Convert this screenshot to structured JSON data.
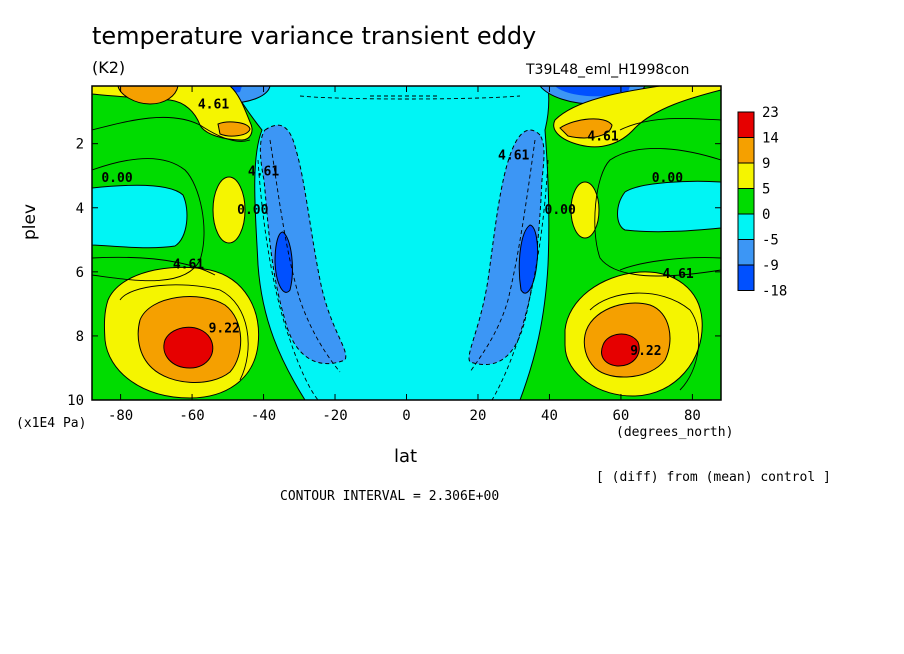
{
  "page": {
    "title": "temperature variance transient eddy",
    "units": "(K2)",
    "run_id": "T39L48_eml_H1998con",
    "diff_note": "[ (diff) from (mean) control ]",
    "contour_interval": "CONTOUR INTERVAL = 2.306E+00"
  },
  "chart_data": {
    "type": "heatmap",
    "subtype": "filled-contour",
    "title": "temperature variance transient eddy",
    "units": "(K2)",
    "xlabel": "lat",
    "xunits": "(degrees_north)",
    "ylabel": "plev",
    "yunits": "(x1E4 Pa)",
    "xlim": [
      -88,
      88
    ],
    "ylim": [
      10,
      0.2
    ],
    "y_inverted": true,
    "xticks": [
      -80,
      -60,
      -40,
      -20,
      0,
      20,
      40,
      60,
      80
    ],
    "xtick_labels": [
      "-80",
      "-60",
      "-40",
      "-20",
      "0",
      "20",
      "40",
      "60",
      "80"
    ],
    "yticks": [
      2,
      4,
      6,
      8,
      10
    ],
    "ytick_labels": [
      "2",
      "4",
      "6",
      "8",
      "10"
    ],
    "contour_interval": 2.306,
    "colorbar": {
      "levels": [
        "23",
        "14",
        "9",
        "5",
        "0",
        "-5",
        "-9",
        "-18"
      ],
      "colors": [
        "#e60000",
        "#f5a000",
        "#f5f500",
        "#00dc00",
        "#00f5f5",
        "#3c96f5",
        "#0050ff"
      ]
    },
    "contour_labels": [
      {
        "text": "4.61",
        "lat": -54,
        "plev": 0.9
      },
      {
        "text": "4.61",
        "lat": 55,
        "plev": 1.9
      },
      {
        "text": "4.61",
        "lat": -40,
        "plev": 3.0
      },
      {
        "text": "4.61",
        "lat": 30,
        "plev": 2.5
      },
      {
        "text": "0.00",
        "lat": -81,
        "plev": 3.2
      },
      {
        "text": "0.00",
        "lat": 73,
        "plev": 3.2
      },
      {
        "text": "0.00",
        "lat": -43,
        "plev": 4.2
      },
      {
        "text": "0.00",
        "lat": 43,
        "plev": 4.2
      },
      {
        "text": "4.61",
        "lat": -61,
        "plev": 5.9
      },
      {
        "text": "4.61",
        "lat": 76,
        "plev": 6.2
      },
      {
        "text": "9.22",
        "lat": -51,
        "plev": 7.9
      },
      {
        "text": "9.22",
        "lat": 67,
        "plev": 8.6
      }
    ],
    "features": [
      {
        "name": "SH lower-troposphere maximum",
        "lat": -60,
        "plev": 8.4,
        "value": 23
      },
      {
        "name": "NH lower-troposphere maximum",
        "lat": 60,
        "plev": 8.4,
        "value": 23
      },
      {
        "name": "SH upper maximum",
        "lat": -74,
        "plev": 0.3,
        "value": 14
      },
      {
        "name": "NH upper maximum",
        "lat": 53,
        "plev": 1.5,
        "value": 14
      },
      {
        "name": "SH subtropical minimum",
        "lat": -35,
        "plev": 5.4,
        "value": -9
      },
      {
        "name": "NH subtropical minimum",
        "lat": 35,
        "plev": 5.4,
        "value": -9
      },
      {
        "name": "SH upper minimum",
        "lat": -52,
        "plev": 0.2,
        "value": -18
      },
      {
        "name": "NH upper minimum",
        "lat": 52,
        "plev": 0.2,
        "value": -18
      }
    ]
  }
}
